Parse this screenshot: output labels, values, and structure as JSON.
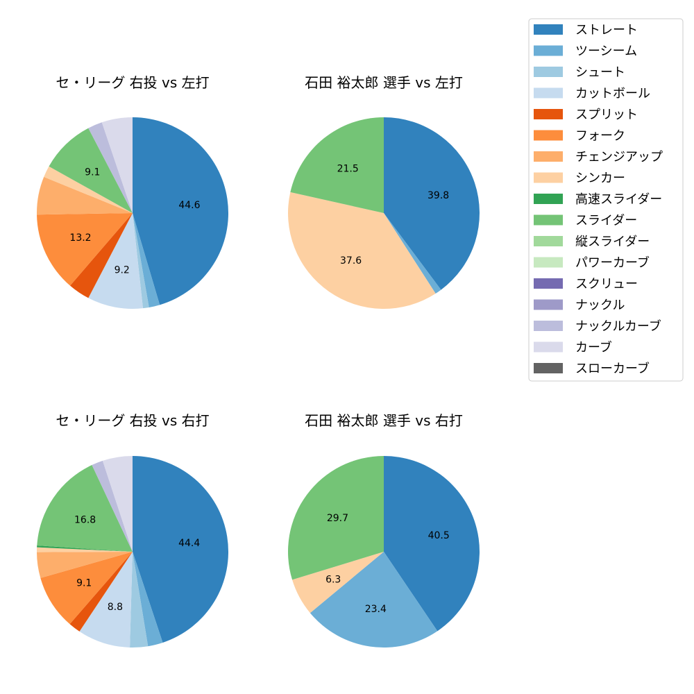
{
  "pitch_types": [
    {
      "name": "ストレート",
      "color": "#3182bd"
    },
    {
      "name": "ツーシーム",
      "color": "#6baed6"
    },
    {
      "name": "シュート",
      "color": "#9ecae1"
    },
    {
      "name": "カットボール",
      "color": "#c6dbef"
    },
    {
      "name": "スプリット",
      "color": "#e6550d"
    },
    {
      "name": "フォーク",
      "color": "#fd8d3c"
    },
    {
      "name": "チェンジアップ",
      "color": "#fdae6b"
    },
    {
      "name": "シンカー",
      "color": "#fdd0a2"
    },
    {
      "name": "高速スライダー",
      "color": "#31a354"
    },
    {
      "name": "スライダー",
      "color": "#74c476"
    },
    {
      "name": "縦スライダー",
      "color": "#a1d99b"
    },
    {
      "name": "パワーカーブ",
      "color": "#c7e9c0"
    },
    {
      "name": "スクリュー",
      "color": "#756bb1"
    },
    {
      "name": "ナックル",
      "color": "#9e9ac8"
    },
    {
      "name": "ナックルカーブ",
      "color": "#bcbddc"
    },
    {
      "name": "カーブ",
      "color": "#dadaeb"
    },
    {
      "name": "スローカーブ",
      "color": "#636363"
    }
  ],
  "chart_data": [
    {
      "type": "pie",
      "title": "セ・リーグ 右投 vs 左打",
      "slices": [
        {
          "label": "ストレート",
          "value": 44.6,
          "show_label": true
        },
        {
          "label": "ツーシーム",
          "value": 1.8
        },
        {
          "label": "シュート",
          "value": 1.0
        },
        {
          "label": "カットボール",
          "value": 9.2,
          "show_label": true
        },
        {
          "label": "スプリット",
          "value": 3.6
        },
        {
          "label": "フォーク",
          "value": 13.2,
          "show_label": true
        },
        {
          "label": "チェンジアップ",
          "value": 6.3
        },
        {
          "label": "シンカー",
          "value": 1.9
        },
        {
          "label": "スライダー",
          "value": 9.1,
          "show_label": true
        },
        {
          "label": "ナックルカーブ",
          "value": 2.4
        },
        {
          "label": "カーブ",
          "value": 5.1
        }
      ]
    },
    {
      "type": "pie",
      "title": "石田 裕太郎 選手 vs 左打",
      "slices": [
        {
          "label": "ストレート",
          "value": 39.8,
          "show_label": true
        },
        {
          "label": "ツーシーム",
          "value": 1.1
        },
        {
          "label": "シンカー",
          "value": 37.6,
          "show_label": true
        },
        {
          "label": "スライダー",
          "value": 21.5,
          "show_label": true
        }
      ]
    },
    {
      "type": "pie",
      "title": "セ・リーグ 右投 vs 右打",
      "slices": [
        {
          "label": "ストレート",
          "value": 44.4,
          "show_label": true
        },
        {
          "label": "ツーシーム",
          "value": 2.5
        },
        {
          "label": "シュート",
          "value": 3.0
        },
        {
          "label": "カットボール",
          "value": 8.8,
          "show_label": true
        },
        {
          "label": "スプリット",
          "value": 2.0
        },
        {
          "label": "フォーク",
          "value": 9.1,
          "show_label": true
        },
        {
          "label": "チェンジアップ",
          "value": 4.3
        },
        {
          "label": "シンカー",
          "value": 0.8
        },
        {
          "label": "高速スライダー",
          "value": 0.3
        },
        {
          "label": "スライダー",
          "value": 16.8,
          "show_label": true
        },
        {
          "label": "ナックルカーブ",
          "value": 1.9
        },
        {
          "label": "カーブ",
          "value": 5.0
        }
      ]
    },
    {
      "type": "pie",
      "title": "石田 裕太郎 選手 vs 右打",
      "slices": [
        {
          "label": "ストレート",
          "value": 40.5,
          "show_label": true
        },
        {
          "label": "ツーシーム",
          "value": 23.4,
          "show_label": true
        },
        {
          "label": "シンカー",
          "value": 6.3,
          "show_label": true
        },
        {
          "label": "スライダー",
          "value": 29.7,
          "show_label": true
        }
      ]
    }
  ]
}
